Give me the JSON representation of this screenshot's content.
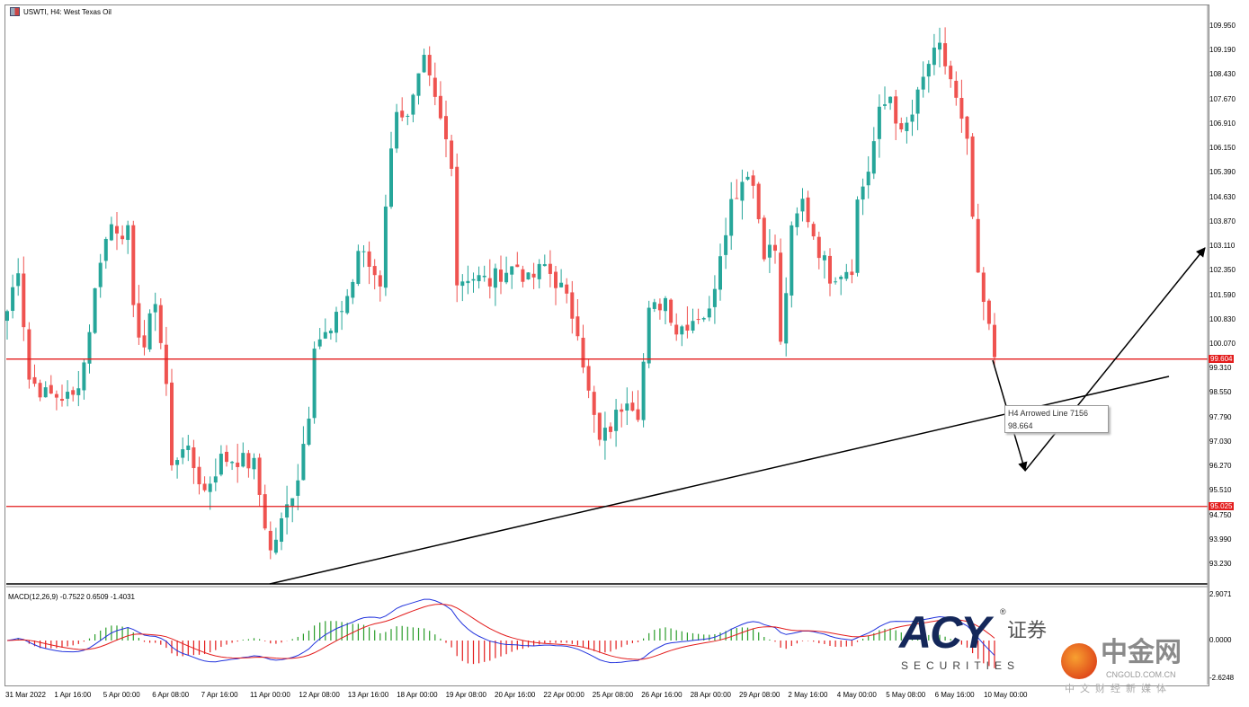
{
  "window": {
    "title": "USWTI, H4:  West Texas Oil"
  },
  "indicator": {
    "label": "MACD(12,26,9) -0.7522 0.6509 -1.4031",
    "axis": [
      "2.9071",
      "0.0000",
      "-2.6248"
    ]
  },
  "price_axis": [
    "109.950",
    "109.190",
    "108.430",
    "107.670",
    "106.910",
    "106.150",
    "105.390",
    "104.630",
    "103.870",
    "103.110",
    "102.350",
    "101.590",
    "100.830",
    "100.070",
    "99.310",
    "98.550",
    "97.790",
    "97.030",
    "96.270",
    "95.510",
    "94.750",
    "93.990",
    "93.230"
  ],
  "price_lines": [
    {
      "value": 99.604,
      "label": "99.604",
      "color": "#e31c1c"
    },
    {
      "value": 95.025,
      "label": "95.025",
      "color": "#e31c1c"
    }
  ],
  "time_axis": [
    "31 Mar 2022",
    "1 Apr 16:00",
    "5 Apr 00:00",
    "6 Apr 08:00",
    "7 Apr 16:00",
    "11 Apr 00:00",
    "12 Apr 08:00",
    "13 Apr 16:00",
    "18 Apr 00:00",
    "19 Apr 08:00",
    "20 Apr 16:00",
    "22 Apr 00:00",
    "25 Apr 08:00",
    "26 Apr 16:00",
    "28 Apr 00:00",
    "29 Apr 08:00",
    "2 May 16:00",
    "4 May 00:00",
    "5 May 08:00",
    "6 May 16:00",
    "10 May 00:00"
  ],
  "tooltip": {
    "name": "H4 Arrowed Line 7156",
    "value": "98.664"
  },
  "logo": {
    "brand": "ACY",
    "reg": "®",
    "cn": "证券",
    "sub": "SECURITIES"
  },
  "watermark": {
    "cn": "中金网",
    "domain": "CNGOLD.COM.CN",
    "sub": "中文财经新媒体"
  },
  "colors": {
    "bull": "#26a69a",
    "bear": "#ef5350",
    "macd": "#2233dd",
    "signal": "#e31c1c"
  },
  "chart_data": {
    "type": "candlestick",
    "symbol": "USWTI",
    "timeframe": "H4",
    "ylim": [
      92.9,
      110.3
    ],
    "close_waypoints": [
      [
        0,
        101.1
      ],
      [
        2,
        102.5
      ],
      [
        4,
        99.0
      ],
      [
        7,
        98.5
      ],
      [
        12,
        98.4
      ],
      [
        14,
        99.5
      ],
      [
        17,
        102.8
      ],
      [
        19,
        103.8
      ],
      [
        22,
        103.5
      ],
      [
        23,
        101.0
      ],
      [
        25,
        100.0
      ],
      [
        27,
        101.5
      ],
      [
        29,
        98.8
      ],
      [
        30,
        96.2
      ],
      [
        32,
        97.0
      ],
      [
        36,
        95.5
      ],
      [
        39,
        96.5
      ],
      [
        42,
        96.5
      ],
      [
        45,
        96.3
      ],
      [
        48,
        93.6
      ],
      [
        50,
        94.5
      ],
      [
        53,
        96.0
      ],
      [
        55,
        98.0
      ],
      [
        56,
        100.2
      ],
      [
        59,
        100.4
      ],
      [
        63,
        102.0
      ],
      [
        64,
        103.0
      ],
      [
        68,
        102.0
      ],
      [
        69,
        104.5
      ],
      [
        71,
        107.5
      ],
      [
        73,
        107.0
      ],
      [
        76,
        108.8
      ],
      [
        79,
        107.0
      ],
      [
        81,
        105.8
      ],
      [
        82,
        102.0
      ],
      [
        84,
        102.2
      ],
      [
        88,
        102.0
      ],
      [
        90,
        102.3
      ],
      [
        93,
        102.5
      ],
      [
        95,
        102.0
      ],
      [
        98,
        102.5
      ],
      [
        101,
        101.8
      ],
      [
        104,
        100.6
      ],
      [
        106,
        98.5
      ],
      [
        108,
        97.0
      ],
      [
        110,
        97.5
      ],
      [
        113,
        98.5
      ],
      [
        115,
        98.0
      ],
      [
        117,
        101.0
      ],
      [
        120,
        101.5
      ],
      [
        122,
        100.5
      ],
      [
        126,
        101.0
      ],
      [
        128,
        101.0
      ],
      [
        130,
        103.0
      ],
      [
        132,
        104.5
      ],
      [
        135,
        105.5
      ],
      [
        136,
        105.0
      ],
      [
        138,
        103.0
      ],
      [
        140,
        103.0
      ],
      [
        141,
        100.0
      ],
      [
        143,
        103.5
      ],
      [
        145,
        104.5
      ],
      [
        148,
        103.0
      ],
      [
        150,
        102.2
      ],
      [
        154,
        102.5
      ],
      [
        155,
        104.5
      ],
      [
        157,
        105.5
      ],
      [
        159,
        107.2
      ],
      [
        161,
        107.8
      ],
      [
        163,
        106.5
      ],
      [
        165,
        107.2
      ],
      [
        168,
        108.8
      ],
      [
        170,
        109.2
      ],
      [
        172,
        108.3
      ],
      [
        175,
        106.2
      ],
      [
        176,
        104.0
      ],
      [
        177,
        102.0
      ],
      [
        178,
        101.3
      ],
      [
        180,
        99.7
      ]
    ],
    "trendline": {
      "from": 93.0,
      "to": 98.9,
      "label": "H4 Arrowed Line 7156"
    }
  }
}
